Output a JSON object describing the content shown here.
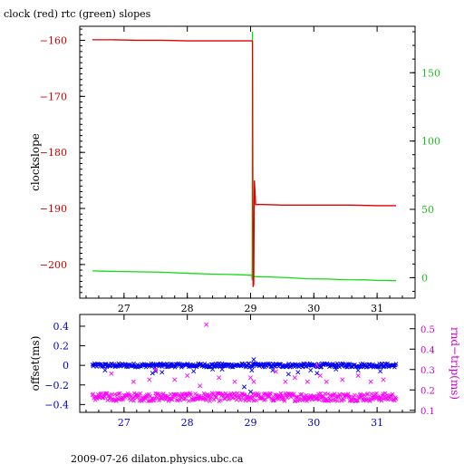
{
  "title": "clock (red) rtc (green) slopes",
  "footer": "2009-07-26 dilaton.physics.ubc.ca",
  "colors": {
    "clock": "#dd0000",
    "rtc": "#11dd11",
    "offset": "#0000ee",
    "roundtrip": "#ff00ff",
    "left_axis_top": "#cc0000",
    "right_axis_top": "#22bb22",
    "left_axis_bottom": "#0000cc",
    "right_axis_bottom": "#cc00cc"
  },
  "chart_data": [
    {
      "type": "line",
      "title": "clock (red) rtc (green) slopes",
      "xlim": [
        26.3,
        31.6
      ],
      "xticks": [
        27,
        28,
        29,
        30,
        31
      ],
      "ylabel": "clockslope",
      "ylim": [
        -206,
        -157.5
      ],
      "yticks": [
        -160,
        -170,
        -180,
        -190,
        -200
      ],
      "y2lim": [
        -15,
        184
      ],
      "y2ticks": [
        0,
        50,
        100,
        150
      ],
      "series": [
        {
          "axis": "left",
          "color": "#dd0000",
          "segments": [
            {
              "x": [
                26.5,
                26.8,
                27.2,
                27.6,
                28.0,
                28.4,
                28.8,
                29.03
              ],
              "y": [
                -159.9,
                -159.9,
                -160.0,
                -160.0,
                -160.1,
                -160.1,
                -160.1,
                -160.1
              ]
            },
            {
              "x": [
                29.03,
                29.04,
                29.05,
                29.06,
                29.07,
                29.08,
                29.1,
                29.2,
                29.5,
                29.8,
                30.2,
                30.6,
                31.0,
                31.3
              ],
              "y": [
                -160.1,
                -204.0,
                -203.5,
                -185.0,
                -187.0,
                -189.3,
                -189.3,
                -189.3,
                -189.4,
                -189.4,
                -189.4,
                -189.4,
                -189.5,
                -189.5
              ]
            }
          ]
        },
        {
          "axis": "right",
          "color": "#11dd11",
          "segments": [
            {
              "x": [
                26.5,
                26.8,
                27.2,
                27.6,
                28.0,
                28.4,
                28.8,
                29.0,
                29.02
              ],
              "y": [
                5.0,
                4.6,
                4.3,
                4.0,
                3.2,
                2.6,
                2.2,
                1.8,
                1.7
              ]
            },
            {
              "x": [
                29.02,
                29.025,
                29.03,
                29.035,
                29.04
              ],
              "y": [
                1.7,
                -2.0,
                180.0,
                0.5,
                0.8
              ]
            },
            {
              "x": [
                29.04,
                29.3,
                29.6,
                29.9,
                30.2,
                30.5,
                30.8,
                31.0,
                31.3
              ],
              "y": [
                0.8,
                0.5,
                0.0,
                -0.8,
                -1.0,
                -1.5,
                -1.6,
                -2.0,
                -2.2
              ]
            }
          ]
        }
      ]
    },
    {
      "type": "scatter",
      "xlim": [
        26.3,
        31.6
      ],
      "xticks": [
        27,
        28,
        29,
        30,
        31
      ],
      "ylabel": "offset(ms)",
      "ylim": [
        -0.48,
        0.52
      ],
      "yticks": [
        0.4,
        0.2,
        0,
        -0.2,
        -0.4
      ],
      "y2label": "rnd−trip(ms)",
      "y2lim": [
        0.09,
        0.57
      ],
      "y2ticks": [
        0.1,
        0.2,
        0.3,
        0.4,
        0.5
      ],
      "series": [
        {
          "axis": "left",
          "marker": "x",
          "color": "#0000ee",
          "band": {
            "x": [
              26.5,
              31.3
            ],
            "center": 0.0,
            "spread": 0.02
          },
          "outliers": [
            {
              "x": 26.7,
              "y": -0.05
            },
            {
              "x": 27.45,
              "y": -0.08
            },
            {
              "x": 27.5,
              "y": -0.06
            },
            {
              "x": 27.6,
              "y": -0.07
            },
            {
              "x": 28.1,
              "y": -0.06
            },
            {
              "x": 28.4,
              "y": -0.04
            },
            {
              "x": 28.55,
              "y": -0.04
            },
            {
              "x": 28.9,
              "y": -0.22
            },
            {
              "x": 29.0,
              "y": -0.27
            },
            {
              "x": 29.02,
              "y": -0.05
            },
            {
              "x": 29.05,
              "y": 0.06
            },
            {
              "x": 29.35,
              "y": -0.05
            },
            {
              "x": 29.6,
              "y": -0.09
            },
            {
              "x": 29.75,
              "y": -0.07
            },
            {
              "x": 29.95,
              "y": -0.05
            },
            {
              "x": 30.05,
              "y": -0.08
            },
            {
              "x": 30.35,
              "y": -0.04
            },
            {
              "x": 30.7,
              "y": -0.05
            },
            {
              "x": 31.05,
              "y": -0.06
            }
          ]
        },
        {
          "axis": "right",
          "marker": "x",
          "color": "#ff00ff",
          "band": {
            "x": [
              26.5,
              31.3
            ],
            "center": 0.165,
            "spread": 0.02
          },
          "outliers": [
            {
              "x": 28.3,
              "y": 0.52
            },
            {
              "x": 26.8,
              "y": 0.28
            },
            {
              "x": 27.15,
              "y": 0.24
            },
            {
              "x": 27.4,
              "y": 0.25
            },
            {
              "x": 27.5,
              "y": 0.3
            },
            {
              "x": 27.8,
              "y": 0.25
            },
            {
              "x": 28.0,
              "y": 0.27
            },
            {
              "x": 28.2,
              "y": 0.22
            },
            {
              "x": 28.5,
              "y": 0.26
            },
            {
              "x": 28.75,
              "y": 0.24
            },
            {
              "x": 29.0,
              "y": 0.26
            },
            {
              "x": 29.05,
              "y": 0.24
            },
            {
              "x": 29.4,
              "y": 0.29
            },
            {
              "x": 29.55,
              "y": 0.24
            },
            {
              "x": 29.7,
              "y": 0.26
            },
            {
              "x": 29.9,
              "y": 0.24
            },
            {
              "x": 30.05,
              "y": 0.32
            },
            {
              "x": 30.1,
              "y": 0.27
            },
            {
              "x": 30.2,
              "y": 0.24
            },
            {
              "x": 30.45,
              "y": 0.25
            },
            {
              "x": 30.7,
              "y": 0.27
            },
            {
              "x": 30.9,
              "y": 0.24
            },
            {
              "x": 31.1,
              "y": 0.25
            }
          ]
        }
      ]
    }
  ]
}
